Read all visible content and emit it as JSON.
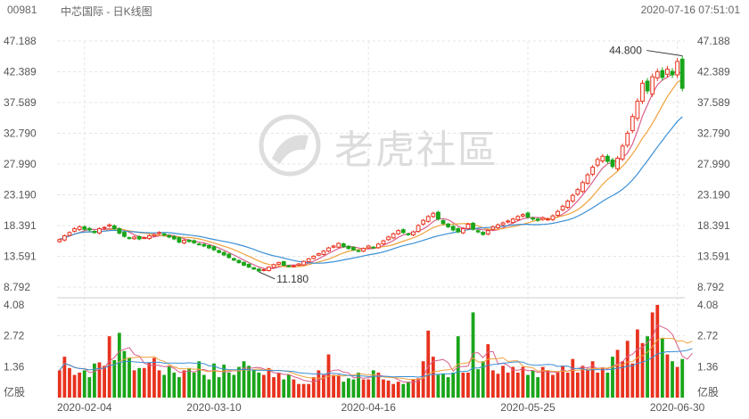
{
  "header": {
    "code": "00981",
    "name": "中芯国际 - 日K线图",
    "timestamp": "2020-07-16 07:51:01"
  },
  "watermark": "老虎社區",
  "colors": {
    "up": "#e8321e",
    "down": "#1aa51a",
    "ma1": "#d95f8b",
    "ma2": "#f0a23e",
    "ma3": "#3a8fd6",
    "grid": "#e4e4e4"
  },
  "chart_data": [
    {
      "type": "candlestick",
      "yticks": [
        "47.188",
        "42.389",
        "37.589",
        "32.790",
        "27.990",
        "23.190",
        "18.391",
        "13.591",
        "8.792"
      ],
      "ylim": [
        8.792,
        47.188
      ],
      "xticks": [
        "2020-02-04",
        "2020-03-10",
        "2020-04-16",
        "2020-05-25",
        "2020-06-30"
      ],
      "annotations": [
        {
          "text": "44.800",
          "type": "max"
        },
        {
          "text": "11.180",
          "type": "min"
        }
      ],
      "closes": [
        16.2,
        16.8,
        17.3,
        17.9,
        18.2,
        17.8,
        17.7,
        17.3,
        17.9,
        18.1,
        18.5,
        17.9,
        17.2,
        16.7,
        16.4,
        16.6,
        16.3,
        16.5,
        16.8,
        17.0,
        17.3,
        16.9,
        16.6,
        16.3,
        15.8,
        16.1,
        15.9,
        15.7,
        15.5,
        15.2,
        14.9,
        14.6,
        14.2,
        13.8,
        13.4,
        13.0,
        12.6,
        12.2,
        11.9,
        11.6,
        11.3,
        11.5,
        11.9,
        12.3,
        12.6,
        12.2,
        12.0,
        12.1,
        12.4,
        12.8,
        13.2,
        13.6,
        14.0,
        14.4,
        14.9,
        15.2,
        15.6,
        15.1,
        14.8,
        14.6,
        14.4,
        14.8,
        15.2,
        15.0,
        15.5,
        16.0,
        16.6,
        17.1,
        17.6,
        17.3,
        17.0,
        17.4,
        18.4,
        19.2,
        19.8,
        20.3,
        19.4,
        18.7,
        18.2,
        17.7,
        17.4,
        17.9,
        18.6,
        17.8,
        17.4,
        17.0,
        17.6,
        18.2,
        18.5,
        18.8,
        19.1,
        19.4,
        19.8,
        20.1,
        19.7,
        19.4,
        19.2,
        19.6,
        19.4,
        19.9,
        20.6,
        21.4,
        22.2,
        23.1,
        24.0,
        25.1,
        26.3,
        27.5,
        28.7,
        29.2,
        28.4,
        27.6,
        28.9,
        30.8,
        32.8,
        35.4,
        37.8,
        40.6,
        39.4,
        41.6,
        42.4,
        41.5,
        42.8,
        41.9,
        44.0,
        39.8
      ],
      "volumes": [
        1.2,
        1.8,
        1.3,
        1.0,
        1.1,
        1.2,
        0.9,
        1.5,
        1.55,
        1.4,
        2.7,
        1.65,
        2.85,
        2.05,
        1.75,
        1.2,
        1.3,
        1.3,
        1.55,
        1.75,
        1.2,
        1.0,
        1.4,
        1.1,
        0.9,
        1.2,
        1.3,
        1.1,
        1.6,
        1.0,
        0.8,
        1.5,
        0.9,
        1.45,
        1.1,
        1.0,
        1.35,
        1.6,
        1.4,
        1.2,
        1.1,
        1.0,
        1.3,
        0.9,
        1.1,
        0.8,
        1.0,
        0.8,
        0.6,
        0.6,
        0.6,
        0.9,
        1.2,
        1.0,
        1.9,
        1.0,
        1.0,
        0.7,
        0.85,
        0.8,
        1.1,
        0.8,
        0.8,
        1.2,
        1.1,
        0.8,
        0.75,
        0.6,
        0.7,
        0.6,
        0.7,
        0.8,
        0.85,
        1.6,
        2.95,
        1.8,
        1.0,
        1.05,
        0.9,
        1.1,
        2.7,
        1.1,
        1.1,
        3.75,
        1.25,
        1.6,
        2.35,
        1.2,
        1.05,
        1.4,
        1.1,
        1.35,
        1.1,
        1.35,
        1.0,
        1.2,
        0.9,
        1.35,
        1.2,
        1.0,
        1.1,
        1.4,
        1.1,
        1.7,
        1.1,
        1.4,
        1.2,
        1.6,
        1.1,
        1.3,
        1.1,
        1.8,
        2.1,
        1.6,
        2.5,
        1.5,
        3.0,
        2.4,
        2.7,
        3.75,
        4.08,
        2.6,
        1.9,
        1.6,
        1.35,
        1.7,
        1.9,
        3.2
      ],
      "vol_yticks": [
        "4.08",
        "2.72",
        "1.36"
      ],
      "vol_unit": "亿股"
    }
  ]
}
